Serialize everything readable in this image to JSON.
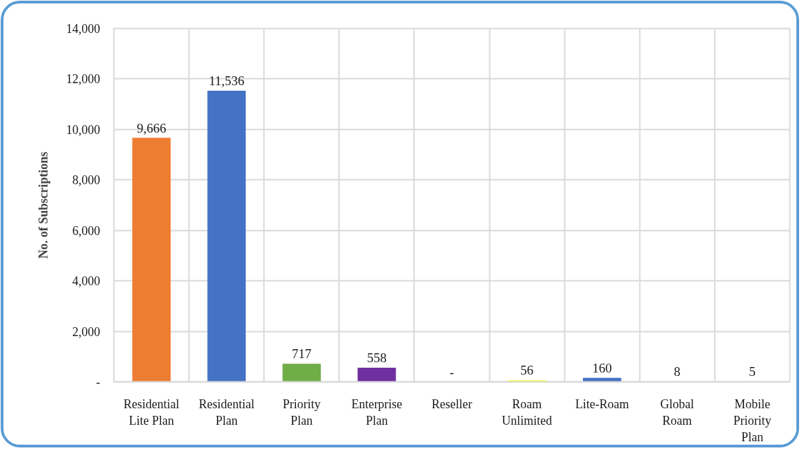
{
  "chart_data": {
    "type": "bar",
    "ylabel": "No. of Subscriptions",
    "categories": [
      "Residential Lite Plan",
      "Residential Plan",
      "Priority Plan",
      "Enterprise Plan",
      "Reseller",
      "Roam Unlimited",
      "Lite-Roam",
      "Global Roam",
      "Mobile Priority Plan"
    ],
    "values": [
      9666,
      11536,
      717,
      558,
      0,
      56,
      160,
      8,
      5
    ],
    "colors": [
      "#ed7d31",
      "#4472c4",
      "#70ad47",
      "#7030a0",
      "#a5a5a5",
      "#ffff00",
      "#4472c4",
      "#5b9bd5",
      "#ffc000"
    ],
    "value_labels": [
      "9,666",
      "11,536",
      "717",
      "558",
      "-",
      "56",
      "160",
      "8",
      "5"
    ],
    "ylim": [
      0,
      14000
    ],
    "yticks": [
      {
        "value": 0,
        "label": "-"
      },
      {
        "value": 2000,
        "label": "2,000"
      },
      {
        "value": 4000,
        "label": "4,000"
      },
      {
        "value": 6000,
        "label": "6,000"
      },
      {
        "value": 8000,
        "label": "8,000"
      },
      {
        "value": 10000,
        "label": "10,000"
      },
      {
        "value": 12000,
        "label": "12,000"
      },
      {
        "value": 14000,
        "label": "14,000"
      }
    ],
    "grid": true
  }
}
